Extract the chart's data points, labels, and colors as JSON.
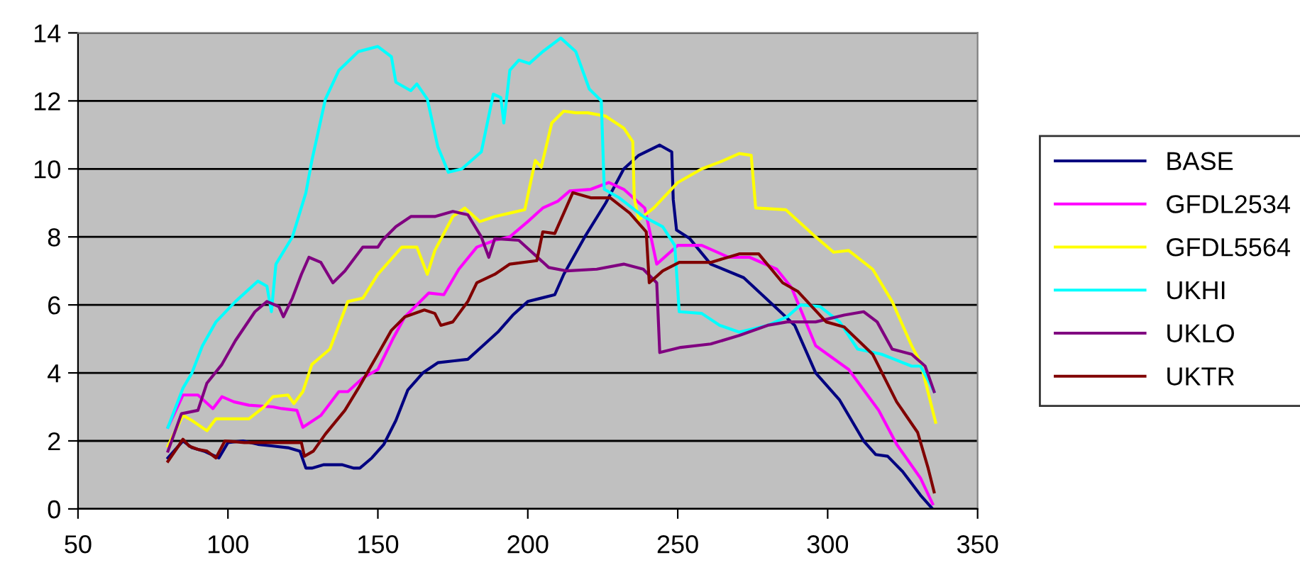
{
  "chart_data": {
    "type": "line",
    "xlim": [
      50,
      350
    ],
    "ylim": [
      0,
      14
    ],
    "xticks": [
      50,
      100,
      150,
      200,
      250,
      300,
      350
    ],
    "yticks": [
      0,
      2,
      4,
      6,
      8,
      10,
      12,
      14
    ],
    "grid": "y",
    "legend": "right",
    "series": [
      {
        "name": "BASE",
        "color": "#000080",
        "x": [
          80,
          85,
          88,
          92,
          97,
          100,
          105,
          110,
          115,
          120,
          124,
          126,
          128,
          132,
          138,
          142,
          144,
          148,
          152,
          156,
          160,
          165,
          170,
          175,
          180,
          185,
          190,
          195,
          200,
          209,
          212,
          219,
          226,
          232,
          237,
          244,
          248,
          248.5,
          249.6,
          254,
          261,
          272,
          283,
          289,
          296,
          304,
          312,
          316,
          320,
          325,
          331,
          335
        ],
        "values": [
          1.5,
          2.0,
          1.8,
          1.7,
          1.5,
          1.95,
          2.0,
          1.9,
          1.85,
          1.8,
          1.7,
          1.2,
          1.2,
          1.3,
          1.3,
          1.2,
          1.2,
          1.5,
          1.9,
          2.6,
          3.5,
          4.0,
          4.3,
          4.35,
          4.4,
          4.8,
          5.2,
          5.7,
          6.1,
          6.3,
          6.9,
          8.0,
          9.0,
          10.0,
          10.4,
          10.7,
          10.5,
          9.1,
          8.2,
          7.95,
          7.2,
          6.8,
          5.9,
          5.4,
          4.0,
          3.2,
          2.0,
          1.6,
          1.55,
          1.1,
          0.4,
          0.0
        ]
      },
      {
        "name": "GFDL2534",
        "color": "#ff00ff",
        "x": [
          80,
          85,
          90,
          95,
          98,
          102,
          107,
          115,
          118,
          123,
          125,
          131,
          137,
          140,
          145,
          150,
          155,
          159,
          167,
          172,
          177,
          183,
          189,
          194,
          200,
          205,
          210,
          214,
          221,
          227,
          232,
          239,
          243,
          250,
          258,
          267,
          274,
          283,
          288,
          296,
          307,
          317,
          323,
          331,
          335
        ],
        "values": [
          2.4,
          3.35,
          3.35,
          2.95,
          3.3,
          3.15,
          3.05,
          3.0,
          2.95,
          2.9,
          2.4,
          2.75,
          3.45,
          3.45,
          3.85,
          4.1,
          5.0,
          5.65,
          6.35,
          6.3,
          7.05,
          7.7,
          7.9,
          8.0,
          8.45,
          8.85,
          9.05,
          9.35,
          9.4,
          9.6,
          9.4,
          8.85,
          7.2,
          7.75,
          7.75,
          7.4,
          7.4,
          7.05,
          6.5,
          4.8,
          4.1,
          2.9,
          1.9,
          0.9,
          0.15
        ]
      },
      {
        "name": "GFDL5564",
        "color": "#ffff00",
        "x": [
          80,
          85,
          88,
          93,
          96,
          107,
          112,
          115,
          120,
          122,
          125,
          128,
          134,
          140,
          145,
          150,
          158,
          163,
          166.5,
          169,
          175,
          179,
          184,
          189,
          194,
          199,
          202.5,
          204.5,
          208,
          212,
          216,
          220,
          226,
          232,
          235,
          235.5,
          237,
          242,
          250,
          258,
          264,
          270.5,
          274.5,
          276,
          286,
          296,
          302,
          307,
          315,
          321.5,
          328,
          331,
          336
        ],
        "values": [
          1.85,
          2.75,
          2.6,
          2.3,
          2.65,
          2.65,
          3.0,
          3.3,
          3.35,
          3.1,
          3.45,
          4.25,
          4.7,
          6.1,
          6.2,
          6.9,
          7.7,
          7.7,
          6.9,
          7.6,
          8.6,
          8.85,
          8.45,
          8.6,
          8.7,
          8.8,
          10.25,
          10.05,
          11.35,
          11.7,
          11.65,
          11.65,
          11.55,
          11.2,
          10.8,
          9.15,
          8.5,
          8.85,
          9.6,
          10.0,
          10.2,
          10.45,
          10.4,
          8.85,
          8.8,
          8.0,
          7.55,
          7.6,
          7.05,
          6.1,
          4.8,
          4.3,
          2.55
        ]
      },
      {
        "name": "UKHI",
        "color": "#00ffff",
        "x": [
          80,
          85,
          88,
          91.5,
          96,
          102.5,
          110,
          113,
          114.5,
          116,
          121.5,
          126,
          128,
          132.5,
          137,
          143.5,
          150,
          154.5,
          156,
          161,
          163,
          166.5,
          170,
          173.5,
          178,
          184.5,
          188.5,
          191,
          192,
          194,
          197,
          200.5,
          205,
          211,
          216,
          220.5,
          224.5,
          225.5,
          230.5,
          238.5,
          245,
          249,
          250.5,
          258,
          264,
          270.5,
          280,
          286.5,
          291,
          297.5,
          304,
          310,
          318,
          328,
          331,
          335.5
        ],
        "values": [
          2.4,
          3.55,
          4.0,
          4.8,
          5.5,
          6.1,
          6.7,
          6.55,
          5.8,
          7.2,
          8.0,
          9.3,
          10.25,
          12.05,
          12.9,
          13.45,
          13.6,
          13.3,
          12.55,
          12.3,
          12.5,
          12.05,
          10.65,
          9.9,
          10.0,
          10.5,
          12.2,
          12.1,
          11.35,
          12.9,
          13.2,
          13.1,
          13.45,
          13.85,
          13.45,
          12.35,
          12.0,
          9.4,
          9.15,
          8.6,
          8.3,
          7.75,
          5.8,
          5.75,
          5.4,
          5.2,
          5.4,
          5.65,
          6.0,
          5.95,
          5.5,
          4.7,
          4.55,
          4.2,
          4.2,
          3.45
        ]
      },
      {
        "name": "UKLO",
        "color": "#800080",
        "x": [
          80,
          84.5,
          90,
          93,
          98,
          102.5,
          109,
          113,
          117,
          118.5,
          121.5,
          124.5,
          127,
          131,
          135,
          139,
          145,
          150,
          151.5,
          156,
          161,
          169,
          175,
          180,
          184.5,
          187,
          189,
          197,
          207,
          213,
          223,
          232,
          238.5,
          243,
          244,
          251,
          261,
          270.5,
          280,
          286.5,
          296,
          305.5,
          312,
          316.5,
          321.5,
          328,
          332.5,
          335.5
        ],
        "values": [
          1.7,
          2.8,
          2.9,
          3.7,
          4.25,
          4.95,
          5.8,
          6.1,
          5.95,
          5.65,
          6.2,
          6.9,
          7.4,
          7.25,
          6.65,
          7.0,
          7.7,
          7.7,
          7.9,
          8.3,
          8.6,
          8.6,
          8.75,
          8.65,
          8.0,
          7.4,
          7.95,
          7.9,
          7.1,
          7.0,
          7.05,
          7.2,
          7.05,
          6.65,
          4.6,
          4.75,
          4.85,
          5.1,
          5.4,
          5.5,
          5.5,
          5.7,
          5.8,
          5.5,
          4.7,
          4.55,
          4.2,
          3.45
        ]
      },
      {
        "name": "UKTR",
        "color": "#800000",
        "x": [
          80,
          83.5,
          85,
          87,
          90,
          93,
          96,
          99,
          105.5,
          124.5,
          125.5,
          128.5,
          132.5,
          139,
          143.5,
          150,
          154.5,
          159,
          165.5,
          169,
          171,
          175,
          180,
          183,
          189,
          194,
          203,
          205,
          209,
          215,
          221,
          227.5,
          234,
          239.5,
          240.5,
          245,
          250.5,
          261,
          270.5,
          277,
          285,
          290,
          299.5,
          305.5,
          315,
          323,
          330,
          333.5,
          335.5
        ],
        "values": [
          1.4,
          1.85,
          2.05,
          1.85,
          1.75,
          1.7,
          1.5,
          2.0,
          1.95,
          1.95,
          1.55,
          1.7,
          2.2,
          2.9,
          3.55,
          4.55,
          5.25,
          5.65,
          5.85,
          5.75,
          5.4,
          5.5,
          6.1,
          6.65,
          6.9,
          7.2,
          7.3,
          8.15,
          8.1,
          9.3,
          9.15,
          9.15,
          8.7,
          8.15,
          6.65,
          7.0,
          7.25,
          7.25,
          7.5,
          7.5,
          6.65,
          6.4,
          5.5,
          5.35,
          4.55,
          3.15,
          2.25,
          1.2,
          0.5
        ]
      }
    ]
  }
}
